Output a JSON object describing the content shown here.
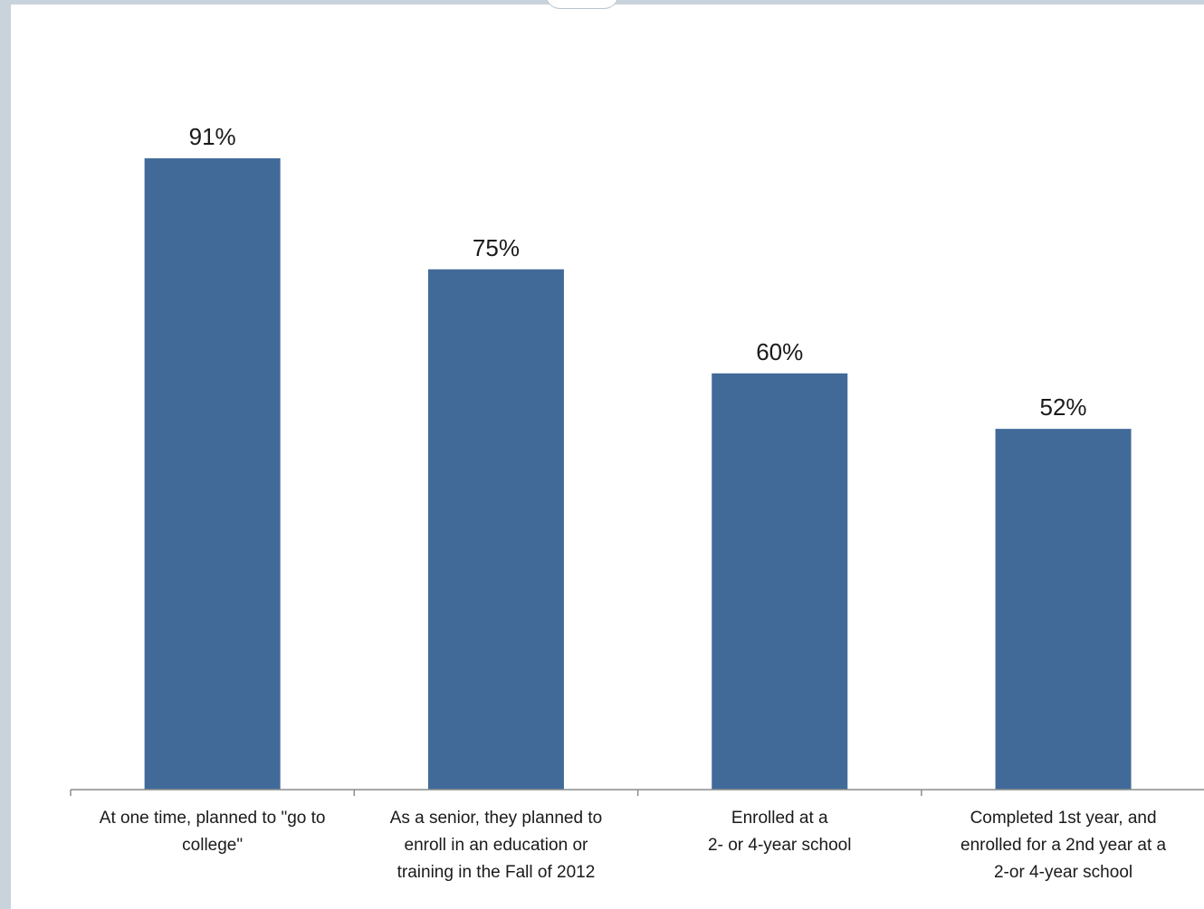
{
  "chart_data": {
    "type": "bar",
    "categories": [
      [
        "At one time, planned to \"go to",
        "college\""
      ],
      [
        "As a senior, they planned to",
        "enroll in an education or",
        "training in the Fall of 2012"
      ],
      [
        "Enrolled at a",
        "2- or 4-year school"
      ],
      [
        "Completed 1st year, and",
        "enrolled for a 2nd year at a",
        "2-or 4-year school"
      ]
    ],
    "values": [
      91,
      75,
      60,
      52
    ],
    "value_labels": [
      "91%",
      "75%",
      "60%",
      "52%"
    ],
    "title": "",
    "xlabel": "",
    "ylabel": "",
    "ylim": [
      0,
      100
    ],
    "grid": false,
    "legend": "none",
    "colors": {
      "bar": "#416a99",
      "axis": "#8c8c8c"
    }
  }
}
